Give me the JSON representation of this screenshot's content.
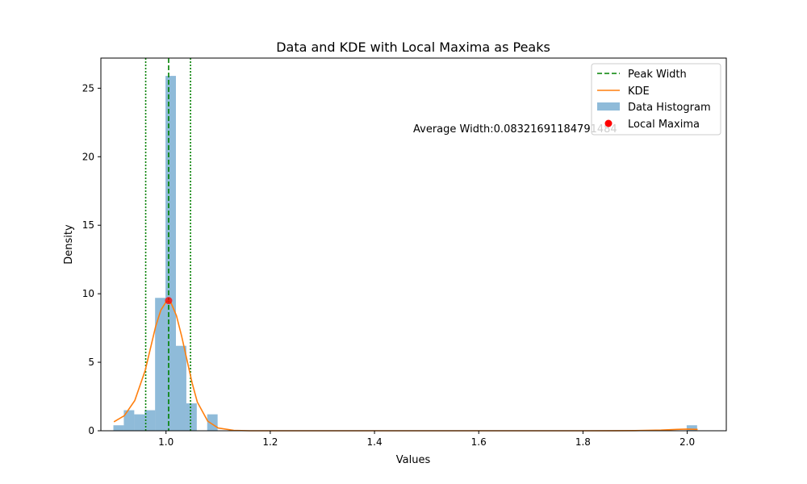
{
  "chart_data": {
    "type": "histogram+line",
    "title": "Data and KDE with Local Maxima as Peaks",
    "xlabel": "Values",
    "ylabel": "Density",
    "xlim": [
      0.875,
      2.075
    ],
    "ylim": [
      0,
      27.2
    ],
    "xticks": [
      1.0,
      1.2,
      1.4,
      1.6,
      1.8,
      2.0
    ],
    "xtick_labels": [
      "1.0",
      "1.2",
      "1.4",
      "1.6",
      "1.8",
      "2.0"
    ],
    "yticks": [
      0,
      5,
      10,
      15,
      20,
      25
    ],
    "ytick_labels": [
      "0",
      "5",
      "10",
      "15",
      "20",
      "25"
    ],
    "histogram": {
      "name": "Data Histogram",
      "color": "#1f77b4",
      "opacity": 0.5,
      "bin_width": 0.02,
      "bins": [
        {
          "x0": 0.899,
          "height": 0.4
        },
        {
          "x0": 0.919,
          "height": 1.5
        },
        {
          "x0": 0.939,
          "height": 1.2
        },
        {
          "x0": 0.959,
          "height": 1.5
        },
        {
          "x0": 0.979,
          "height": 9.7
        },
        {
          "x0": 0.999,
          "height": 25.9
        },
        {
          "x0": 1.019,
          "height": 6.2
        },
        {
          "x0": 1.039,
          "height": 2.0
        },
        {
          "x0": 1.059,
          "height": 0.0
        },
        {
          "x0": 1.079,
          "height": 1.2
        },
        {
          "x0": 1.999,
          "height": 0.4
        }
      ]
    },
    "kde": {
      "name": "KDE",
      "color": "#ff7f0e",
      "x": [
        0.9,
        0.92,
        0.94,
        0.96,
        0.98,
        0.99,
        1.0,
        1.005,
        1.01,
        1.02,
        1.03,
        1.04,
        1.05,
        1.06,
        1.08,
        1.1,
        1.13,
        1.16,
        1.2,
        1.4,
        1.6,
        1.8,
        1.9,
        1.95,
        1.98,
        2.0,
        2.02
      ],
      "y": [
        0.65,
        1.1,
        2.2,
        4.4,
        7.6,
        8.8,
        9.4,
        9.5,
        9.3,
        8.4,
        6.9,
        5.2,
        3.5,
        2.1,
        0.7,
        0.2,
        0.03,
        0.0,
        0.0,
        0.0,
        0.0,
        0.0,
        0.01,
        0.05,
        0.1,
        0.12,
        0.1
      ]
    },
    "local_maxima": {
      "name": "Local Maxima",
      "color": "#ff0000",
      "points": [
        {
          "x": 1.005,
          "y": 9.5
        }
      ]
    },
    "peak_width": {
      "name": "Peak Width",
      "color": "#008000",
      "peak_x": 1.005,
      "bounds": [
        0.961,
        1.047
      ]
    },
    "annotation": "Average Width:0.08321691184791484",
    "legend": {
      "location": "upper right",
      "entries": [
        "Peak Width",
        "KDE",
        "Data Histogram",
        "Local Maxima"
      ]
    }
  }
}
